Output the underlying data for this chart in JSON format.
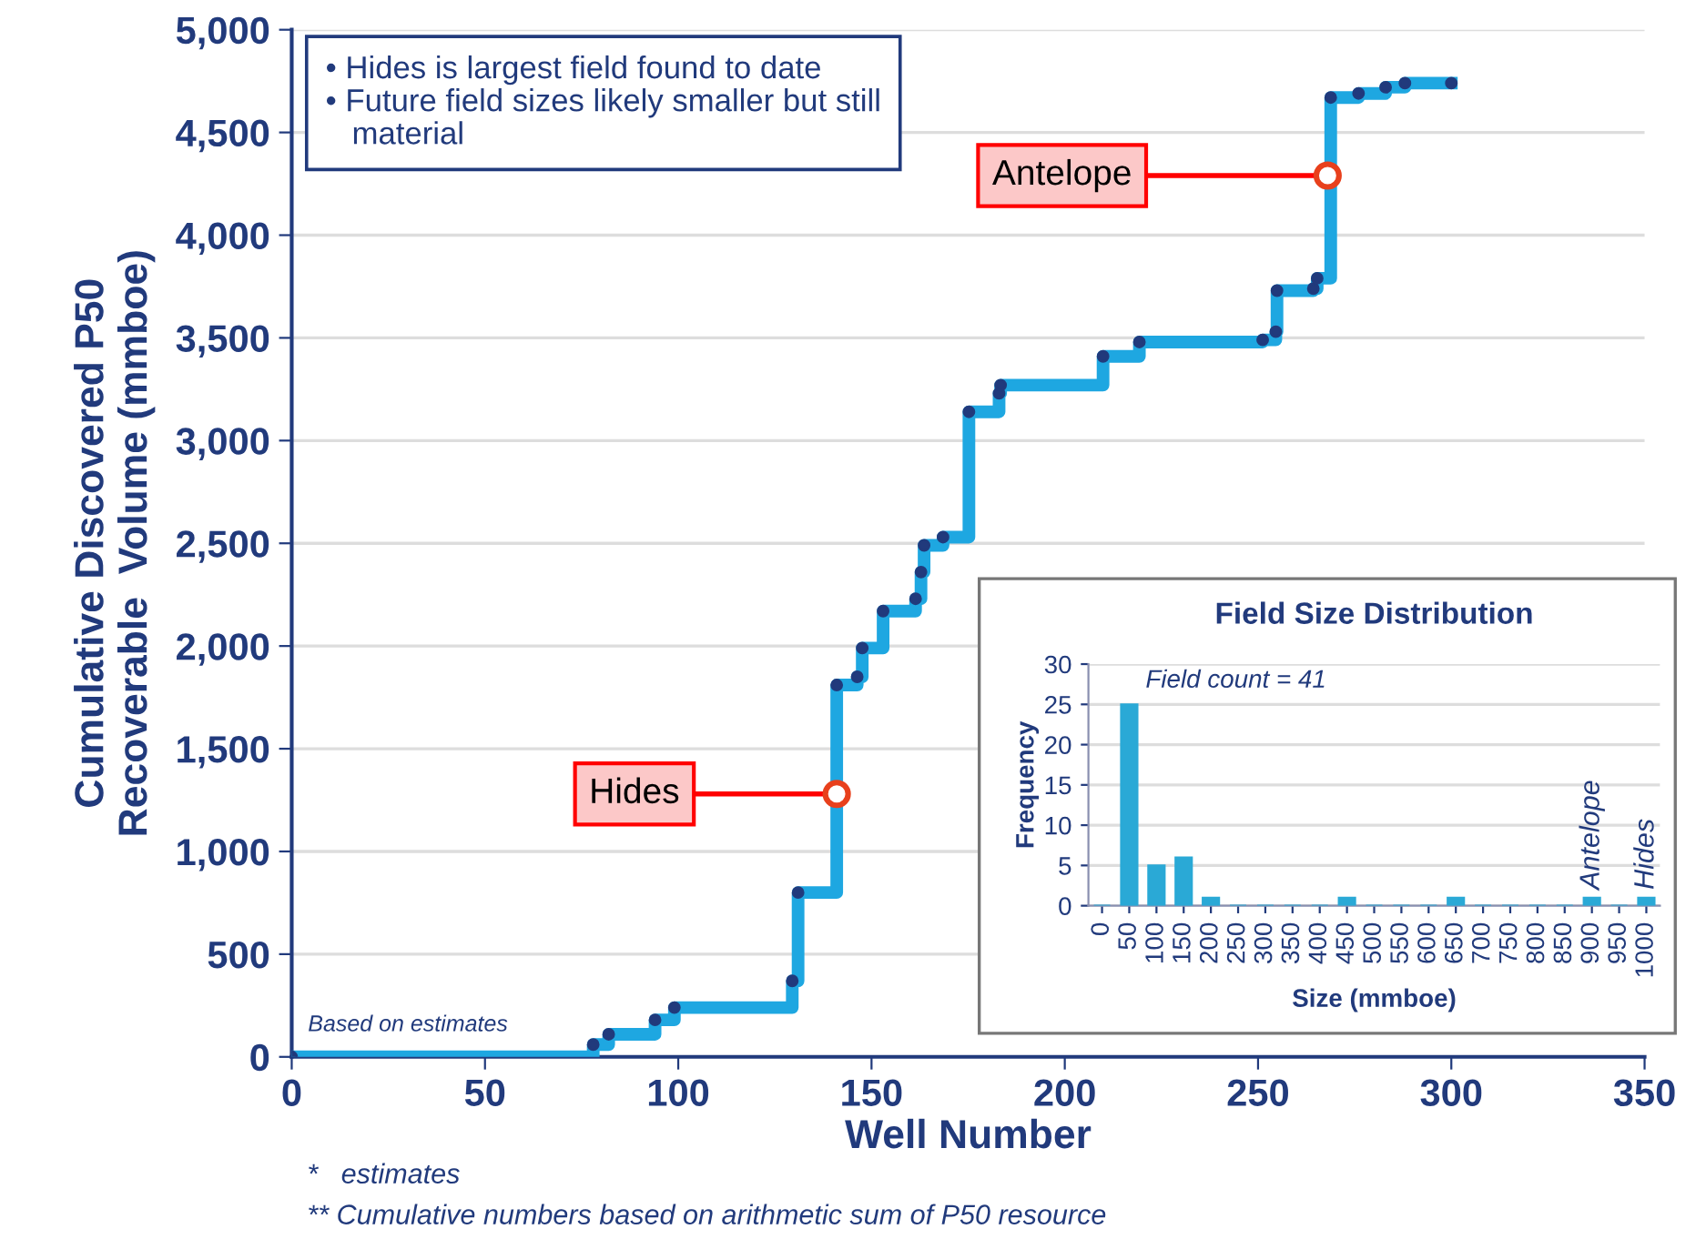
{
  "chart_data": [
    {
      "type": "step",
      "xlabel": "Well Number",
      "ylabel": "Cumulative Discovered P50\nRecoverable  Volume (mmboe)",
      "series": [
        {
          "color": "#1ea7e1",
          "x": [
            0,
            78,
            82,
            94,
            99,
            129.5,
            131,
            141,
            146.3,
            147.6,
            153,
            161.4,
            162.8,
            163.6,
            168.5,
            175.2,
            183,
            183.4,
            209.9,
            219.3,
            251.2,
            254.6,
            254.9,
            264.3,
            265.3,
            268.8,
            276,
            283,
            288,
            300
          ],
          "values": [
            0,
            60,
            110,
            180,
            240,
            370,
            800,
            1810,
            1850,
            1990,
            2170,
            2230,
            2360,
            2490,
            2530,
            3140,
            3230,
            3270,
            3410,
            3480,
            3490,
            3530,
            3730,
            3740,
            3790,
            4670,
            4690,
            4720,
            4740,
            4740
          ]
        }
      ],
      "marker": "circle",
      "line_style": "solid",
      "xlim": [
        0,
        350
      ],
      "xticks": [
        0,
        50,
        100,
        150,
        200,
        250,
        300,
        350
      ],
      "ylim": [
        0,
        5000
      ],
      "yticks": [
        0,
        500,
        {
          "value": 1000,
          "label": "1,000"
        },
        {
          "value": 1500,
          "label": "1,500"
        },
        {
          "value": 2000,
          "label": "2,000"
        },
        {
          "value": 2500,
          "label": "2,500"
        },
        {
          "value": 3000,
          "label": "3,000"
        },
        {
          "value": 3500,
          "label": "3,500"
        },
        {
          "value": 4000,
          "label": "4,000"
        },
        {
          "value": 4500,
          "label": "4,500"
        },
        {
          "value": 5000,
          "label": "5,000"
        }
      ],
      "grid": "y",
      "annotations": [
        {
          "text": "Hides",
          "x": 141,
          "y": 1280
        },
        {
          "text": "Antelope",
          "x": 268,
          "y": 4290
        },
        "• Hides is largest field found to date\n• Future field sizes likely smaller but still\n   material",
        "Based on estimates",
        "*   estimates",
        "** Cumulative numbers based on arithmetic sum of P50 resource"
      ]
    },
    {
      "type": "bar",
      "title": "Field Size Distribution",
      "xlabel": "Size (mmboe)",
      "ylabel": "Frequency",
      "categories": [
        "0",
        "50",
        "100",
        "150",
        "200",
        "250",
        "300",
        "350",
        "400",
        "450",
        "500",
        "550",
        "600",
        "650",
        "700",
        "750",
        "800",
        "850",
        "900",
        "950",
        "1000"
      ],
      "values": [
        0,
        25,
        5,
        6,
        1,
        0,
        0,
        0,
        0,
        1,
        0,
        0,
        0,
        1,
        0,
        0,
        0,
        0,
        1,
        0,
        1
      ],
      "color": "#2aa9d6",
      "ylim": [
        0,
        30
      ],
      "yticks": [
        0,
        5,
        10,
        15,
        20,
        25,
        30
      ],
      "grid": "y",
      "annotations": [
        "Field count = 41",
        {
          "text": "Antelope",
          "x": "900",
          "y": 1
        },
        {
          "text": "Hides",
          "x": "1000",
          "y": 1
        }
      ]
    }
  ]
}
